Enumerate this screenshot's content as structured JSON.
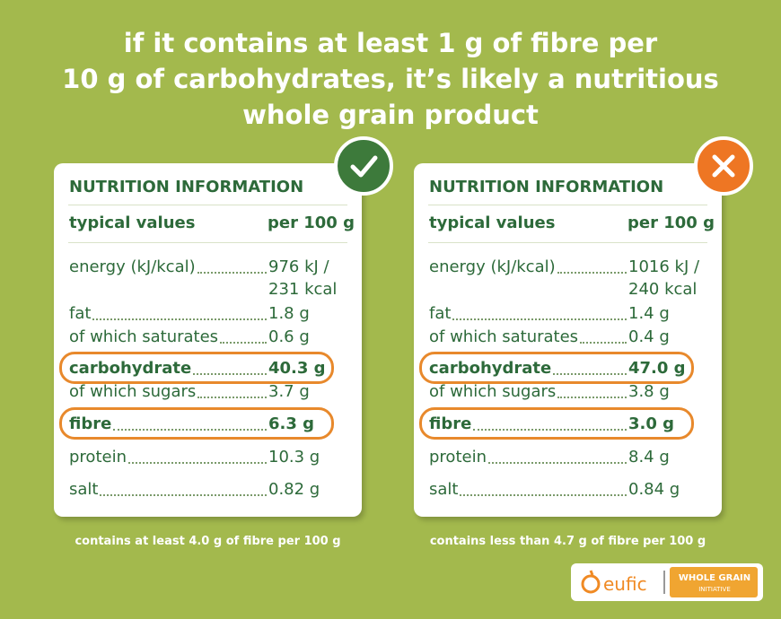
{
  "title_lines": [
    "if it contains at least 1 g of fibre per",
    "10 g of carbohydrates, it’s likely a nutritious",
    "whole grain product"
  ],
  "cards": [
    {
      "verdict": "good",
      "header": "NUTRITION INFORMATION",
      "col_label": "typical values",
      "col_value": "per 100 g",
      "rows": [
        {
          "label": "energy (kJ/kcal)",
          "value": "976 kJ / 231 kcal"
        },
        {
          "label": "fat",
          "value": "1.8 g"
        },
        {
          "label": "of which saturates",
          "value": "0.6 g"
        },
        {
          "label": "carbohydrate",
          "value": "40.3 g",
          "highlight": true
        },
        {
          "label": "of which sugars",
          "value": "3.7 g"
        },
        {
          "label": "fibre",
          "value": "6.3 g",
          "highlight": true
        },
        {
          "label": "protein",
          "value": "10.3 g"
        },
        {
          "label": "salt",
          "value": "0.82 g"
        }
      ],
      "caption": "contains at least 4.0 g of fibre per 100 g"
    },
    {
      "verdict": "bad",
      "header": "NUTRITION INFORMATION",
      "col_label": "typical values",
      "col_value": "per 100 g",
      "rows": [
        {
          "label": "energy (kJ/kcal)",
          "value": "1016 kJ / 240 kcal"
        },
        {
          "label": "fat",
          "value": "1.4 g"
        },
        {
          "label": "of which saturates",
          "value": "0.4 g"
        },
        {
          "label": "carbohydrate",
          "value": "47.0 g",
          "highlight": true
        },
        {
          "label": "of which sugars",
          "value": "3.8 g"
        },
        {
          "label": "fibre",
          "value": "3.0 g",
          "highlight": true
        },
        {
          "label": "protein",
          "value": "8.4 g"
        },
        {
          "label": "salt",
          "value": "0.84 g"
        }
      ],
      "caption": "contains less than 4.7 g of fibre per 100 g"
    }
  ],
  "logos": {
    "eufic": "eufic",
    "wgi_top": "WHOLE GRAIN",
    "wgi_bottom": "INITIATIVE"
  }
}
